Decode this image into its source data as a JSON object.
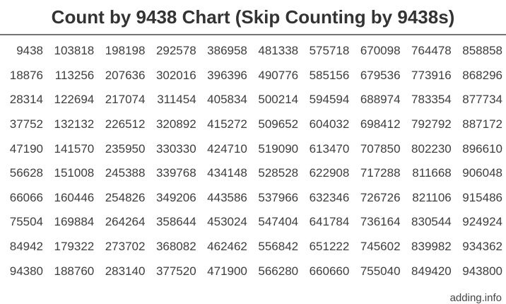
{
  "title": "Count by 9438 Chart (Skip Counting by 9438s)",
  "footer": {
    "site": "adding.info"
  },
  "colors": {
    "title_text": "#333333",
    "number_text": "#3d3d3d",
    "divider": "#757575",
    "footer_text": "#444444",
    "background": "#ffffff"
  },
  "chart_data": {
    "type": "table",
    "title": "Count by 9438 Chart (Skip Counting by 9438s)",
    "step": 9438,
    "first_value": 9438,
    "last_value": 943800,
    "order": "column-major",
    "rows": [
      [
        9438,
        103818,
        198198,
        292578,
        386958,
        481338,
        575718,
        670098,
        764478,
        858858
      ],
      [
        18876,
        113256,
        207636,
        302016,
        396396,
        490776,
        585156,
        679536,
        773916,
        868296
      ],
      [
        28314,
        122694,
        217074,
        311454,
        405834,
        500214,
        594594,
        688974,
        783354,
        877734
      ],
      [
        37752,
        132132,
        226512,
        320892,
        415272,
        509652,
        604032,
        698412,
        792792,
        887172
      ],
      [
        47190,
        141570,
        235950,
        330330,
        424710,
        519090,
        613470,
        707850,
        802230,
        896610
      ],
      [
        56628,
        151008,
        245388,
        339768,
        434148,
        528528,
        622908,
        717288,
        811668,
        906048
      ],
      [
        66066,
        160446,
        254826,
        349206,
        443586,
        537966,
        632346,
        726726,
        821106,
        915486
      ],
      [
        75504,
        169884,
        264264,
        358644,
        453024,
        547404,
        641784,
        736164,
        830544,
        924924
      ],
      [
        84942,
        179322,
        273702,
        368082,
        462462,
        556842,
        651222,
        745602,
        839982,
        934362
      ],
      [
        94380,
        188760,
        283140,
        377520,
        471900,
        566280,
        660660,
        755040,
        849420,
        943800
      ]
    ]
  }
}
